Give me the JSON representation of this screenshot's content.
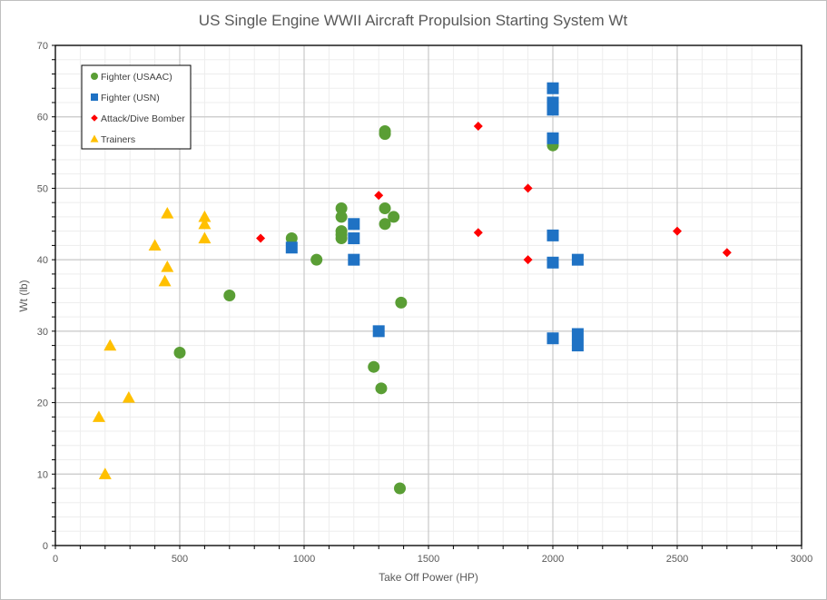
{
  "chart_data": {
    "type": "scatter",
    "title": "US Single Engine WWII Aircraft Propulsion Starting System  Wt",
    "xlabel": "Take Off Power (HP)",
    "ylabel": "Wt (lb)",
    "xlim": [
      0,
      3000
    ],
    "ylim": [
      0,
      70
    ],
    "x_ticks": [
      0,
      500,
      1000,
      1500,
      2000,
      2500,
      3000
    ],
    "y_ticks": [
      0,
      10,
      20,
      30,
      40,
      50,
      60,
      70
    ],
    "x_tick_labels": [
      "0",
      "500",
      "1000",
      "1500",
      "2000",
      "2500",
      "3000"
    ],
    "y_tick_labels": [
      "0",
      "10",
      "20",
      "30",
      "40",
      "50",
      "60",
      "70"
    ],
    "grid": {
      "major": true,
      "minor": true
    },
    "legend_position": "top-left",
    "series": [
      {
        "name": "Fighter (USAAC)",
        "marker": "circle",
        "color": "#5a9e35",
        "points": [
          [
            500,
            27
          ],
          [
            700,
            35
          ],
          [
            950,
            43
          ],
          [
            1050,
            40
          ],
          [
            1150,
            47.2
          ],
          [
            1150,
            46
          ],
          [
            1150,
            44
          ],
          [
            1150,
            43.5
          ],
          [
            1150,
            43
          ],
          [
            1280,
            25
          ],
          [
            1310,
            22
          ],
          [
            1325,
            58
          ],
          [
            1325,
            57.6
          ],
          [
            1325,
            47.2
          ],
          [
            1325,
            45
          ],
          [
            1360,
            46
          ],
          [
            1385,
            8
          ],
          [
            1390,
            34
          ],
          [
            2000,
            56
          ]
        ]
      },
      {
        "name": "Fighter (USN)",
        "marker": "square",
        "color": "#1f72c4",
        "points": [
          [
            950,
            41.7
          ],
          [
            1200,
            45
          ],
          [
            1200,
            43
          ],
          [
            1200,
            40
          ],
          [
            1300,
            30
          ],
          [
            2000,
            64
          ],
          [
            2000,
            62
          ],
          [
            2000,
            61
          ],
          [
            2000,
            57
          ],
          [
            2000,
            43.4
          ],
          [
            2000,
            39.6
          ],
          [
            2000,
            29
          ],
          [
            2100,
            40
          ],
          [
            2100,
            29.6
          ],
          [
            2100,
            28
          ]
        ]
      },
      {
        "name": "Attack/Dive Bomber",
        "marker": "diamond",
        "color": "#ff0000",
        "points": [
          [
            825,
            43
          ],
          [
            1300,
            49
          ],
          [
            1700,
            58.7
          ],
          [
            1700,
            43.8
          ],
          [
            1900,
            50
          ],
          [
            1900,
            40
          ],
          [
            2500,
            44
          ],
          [
            2700,
            41
          ]
        ]
      },
      {
        "name": "Trainers",
        "marker": "triangle",
        "color": "#ffc000",
        "points": [
          [
            175,
            18
          ],
          [
            200,
            10
          ],
          [
            220,
            28
          ],
          [
            295,
            20.7
          ],
          [
            400,
            42
          ],
          [
            440,
            37
          ],
          [
            450,
            39
          ],
          [
            450,
            46.5
          ],
          [
            600,
            46
          ],
          [
            600,
            45
          ],
          [
            600,
            43
          ]
        ]
      }
    ]
  }
}
